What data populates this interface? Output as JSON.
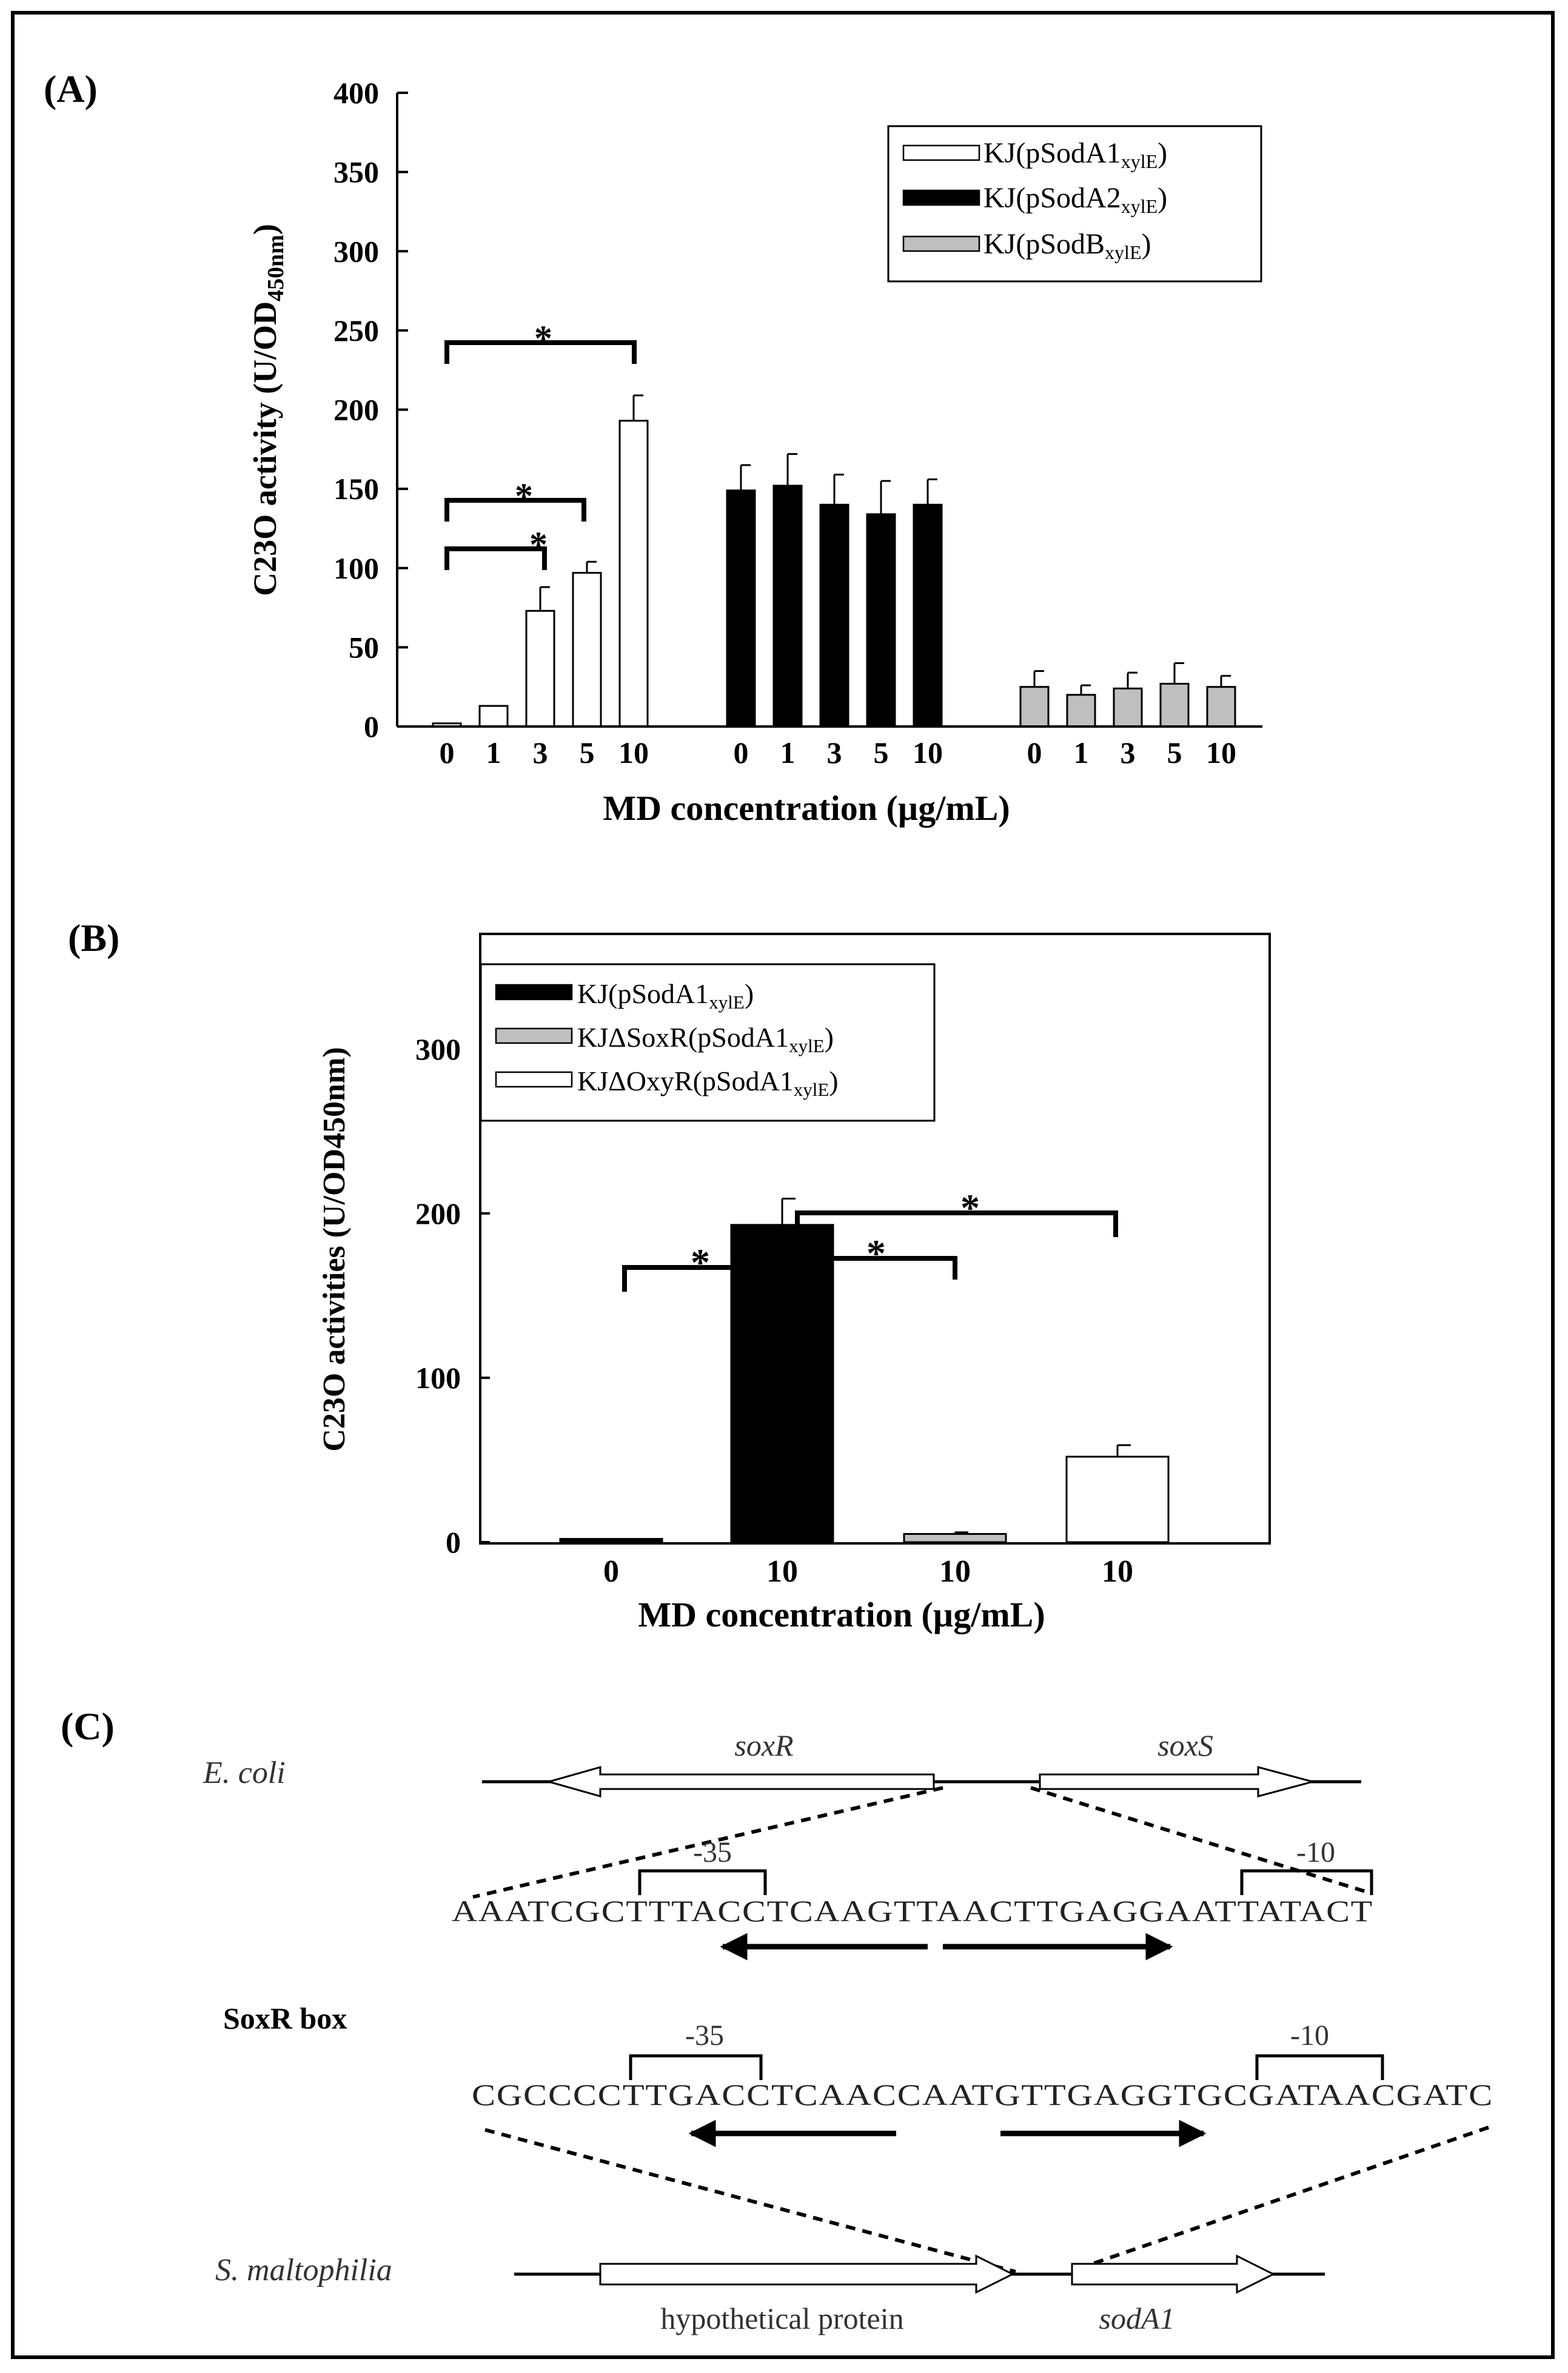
{
  "chart_data": [
    {
      "type": "bar",
      "panel_label": "(A)",
      "ylabel_main": "C23O activity (U/OD",
      "ylabel_sub": "450nm",
      "ylabel_close": ")",
      "xlabel": "MD concentration (µg/mL)",
      "ylim": [
        0,
        400
      ],
      "yticks": [
        "0",
        "50",
        "100",
        "150",
        "200",
        "250",
        "300",
        "350",
        "400"
      ],
      "categories": [
        "0",
        "1",
        "3",
        "5",
        "10"
      ],
      "series": [
        {
          "name": "KJ(pSodA1",
          "sub": "xylE",
          "close": ")",
          "color": "#ffffff",
          "values": [
            2,
            13,
            73,
            97,
            193
          ],
          "errors": [
            0,
            0,
            15,
            7,
            16
          ]
        },
        {
          "name": "KJ(pSodA2",
          "sub": "xylE",
          "close": ")",
          "color": "#000000",
          "values": [
            149,
            152,
            140,
            134,
            140
          ],
          "errors": [
            16,
            20,
            19,
            21,
            16
          ]
        },
        {
          "name": "KJ(pSodB",
          "sub": "xylE",
          "close": ")",
          "color": "#bfbfbf",
          "values": [
            25,
            20,
            24,
            27,
            25
          ],
          "errors": [
            10,
            6,
            10,
            13,
            7
          ]
        }
      ],
      "significance": [
        "*",
        "*",
        "*"
      ]
    },
    {
      "type": "bar",
      "panel_label": "(B)",
      "ylabel": "C23O activities (U/OD450nm)",
      "xlabel": "MD concentration (µg/mL)",
      "ylim": [
        0,
        370
      ],
      "yticks": [
        "0",
        "100",
        "200",
        "300"
      ],
      "categories": [
        "0",
        "10",
        "10",
        "10"
      ],
      "values": [
        2,
        193,
        5,
        52
      ],
      "errors": [
        0,
        16,
        1,
        7
      ],
      "colors": [
        "#000000",
        "#000000",
        "#bfbfbf",
        "#ffffff"
      ],
      "legend": [
        {
          "name": "KJ(pSodA1",
          "sub": "xylE",
          "close": ")",
          "color": "#000000"
        },
        {
          "name": "KJΔSoxR(pSodA1",
          "sub": "xylE",
          "close": ")",
          "color": "#bfbfbf"
        },
        {
          "name": "KJΔOxyR(pSodA1",
          "sub": "xylE",
          "close": ")",
          "color": "#ffffff"
        }
      ],
      "significance": [
        "*",
        "*",
        "*"
      ]
    }
  ],
  "panel_c": {
    "label": "(C)",
    "ecoli_label": "E. coli",
    "soxR_label": "soxR",
    "soxS_label": "soxS",
    "minus35": "-35",
    "minus10": "-10",
    "ecoli_seq": "AAATCGCTTTACCTCAAGTTAACTTGAGGAATTATACT",
    "soxr_box_label": "SoxR box",
    "smalt_seq": "CGCCCCTTGACCTCAACCAATGTTGAGGTGCGATAACGATC",
    "smalt_label": "S. maltophilia",
    "hyp_label": "hypothetical protein",
    "sodA1_label": "sodA1"
  }
}
